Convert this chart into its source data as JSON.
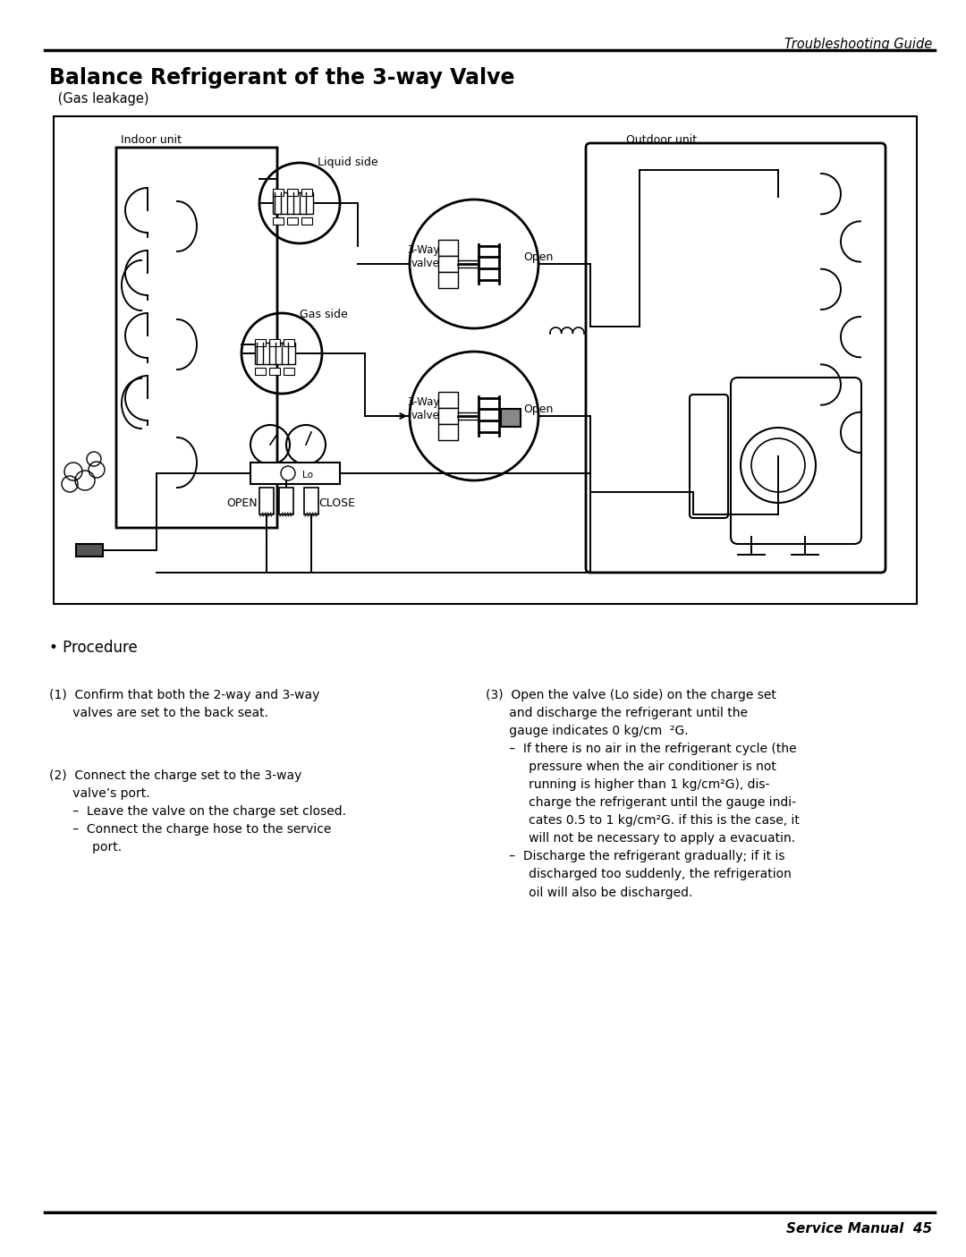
{
  "header_text": "Troubleshooting Guide",
  "title": "Balance Refrigerant of the 3-way Valve",
  "subtitle": " (Gas leakage)",
  "procedure_header": "• Procedure",
  "text1": "(1)  Confirm that both the 2-way and 3-way\n      valves are set to the back seat.",
  "text2": "(2)  Connect the charge set to the 3-way\n      valve’s port.\n      –  Leave the valve on the charge set closed.\n      –  Connect the charge hose to the service\n           port.",
  "text3": "(3)  Open the valve (Lo side) on the charge set\n      and discharge the refrigerant until the\n      gauge indicates 0 kg/cm  ²G.\n      –  If there is no air in the refrigerant cycle (the\n           pressure when the air conditioner is not\n           running is higher than 1 kg/cm²G), dis-\n           charge the refrigerant until the gauge indi-\n           cates 0.5 to 1 kg/cm²G. if this is the case, it\n           will not be necessary to apply a evacuatin.\n      –  Discharge the refrigerant gradually; if it is\n           discharged too suddenly, the refrigeration\n           oil will also be discharged.",
  "footer_text": "Service Manual  45",
  "bg_color": "#ffffff",
  "text_color": "#000000"
}
